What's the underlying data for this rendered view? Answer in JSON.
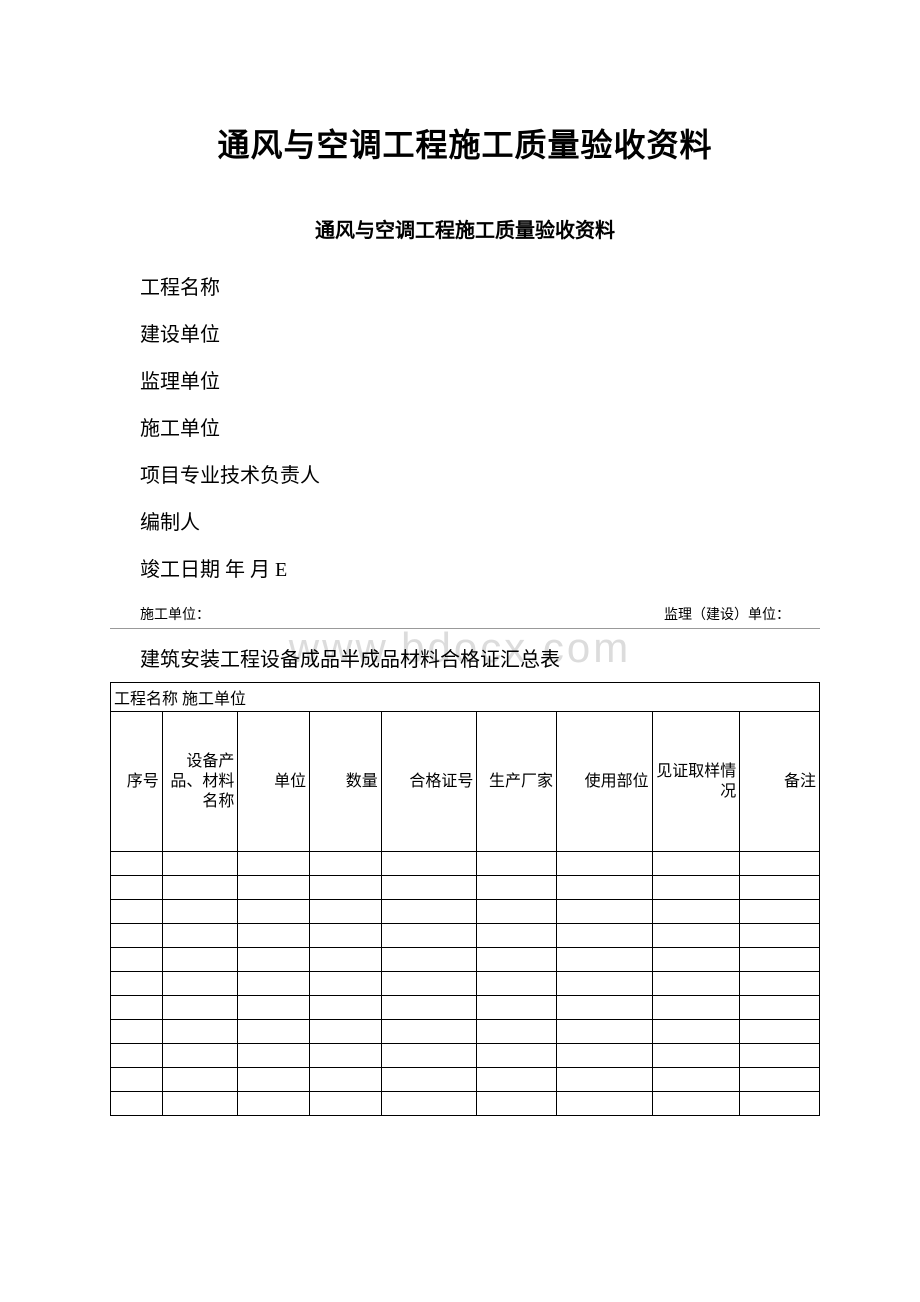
{
  "doc": {
    "main_title": "通风与空调工程施工质量验收资料",
    "sub_title": "通风与空调工程施工质量验收资料",
    "fields": {
      "project_name": "工程名称",
      "builder": "建设单位",
      "supervisor": "监理单位",
      "contractor": "施工单位",
      "tech_lead": "项目专业技术负责人",
      "compiler": "编制人",
      "completion_date": "竣工日期 年 月 E"
    },
    "units_row": {
      "left": "施工单位：",
      "right": "监理（建设）单位："
    },
    "watermark": "www.bdocx.com",
    "table": {
      "title": "建筑安装工程设备成品半成品材料合格证汇总表",
      "caption": "工程名称 施工单位",
      "columns": {
        "seq": "序号",
        "name": "设备产品、材料名称",
        "unit": "单位",
        "qty": "数量",
        "cert": "合格证号",
        "mfr": "生产厂家",
        "use": "使用部位",
        "wit": "见证取样情况",
        "note": "备注"
      },
      "empty_rows": 11
    }
  }
}
